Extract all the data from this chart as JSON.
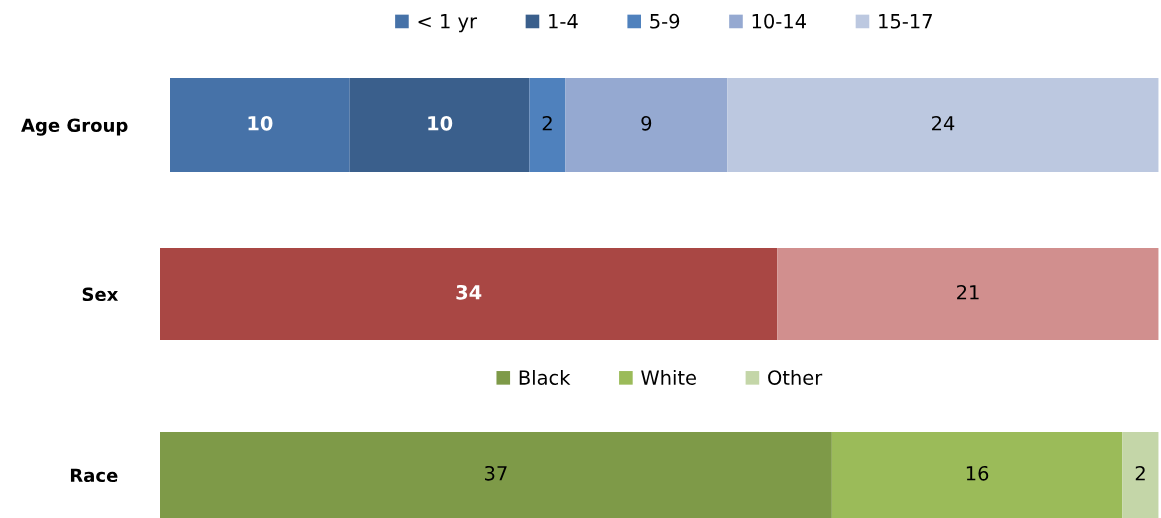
{
  "chart_data": [
    {
      "type": "bar",
      "orientation": "horizontal",
      "stacked": true,
      "categories": [
        "Age Group"
      ],
      "xlim": [
        0,
        55
      ],
      "data_labels": true,
      "legend": "top",
      "series": [
        {
          "name": "< 1 yr",
          "color": "#4672a8",
          "values": [
            10
          ]
        },
        {
          "name": "1-4",
          "color": "#3a5f8c",
          "values": [
            10
          ]
        },
        {
          "name": "5-9",
          "color": "#4f81bd",
          "values": [
            2
          ]
        },
        {
          "name": "10-14",
          "color": "#95a9d1",
          "values": [
            9
          ]
        },
        {
          "name": "15-17",
          "color": "#bcc8e0",
          "values": [
            24
          ]
        }
      ]
    },
    {
      "type": "bar",
      "orientation": "horizontal",
      "stacked": true,
      "categories": [
        "Sex"
      ],
      "xlim": [
        0,
        55
      ],
      "data_labels": true,
      "series": [
        {
          "color": "#a94744",
          "values": [
            34
          ]
        },
        {
          "color": "#d18f8e",
          "values": [
            21
          ]
        }
      ]
    },
    {
      "type": "bar",
      "orientation": "horizontal",
      "stacked": true,
      "categories": [
        "Race"
      ],
      "xlim": [
        0,
        55
      ],
      "data_labels": true,
      "legend": "top",
      "series": [
        {
          "name": "Black",
          "color": "#7e9a48",
          "values": [
            37
          ]
        },
        {
          "name": "White",
          "color": "#9bbb59",
          "values": [
            16
          ]
        },
        {
          "name": "Other",
          "color": "#c4d6a8",
          "values": [
            2
          ]
        }
      ]
    }
  ]
}
